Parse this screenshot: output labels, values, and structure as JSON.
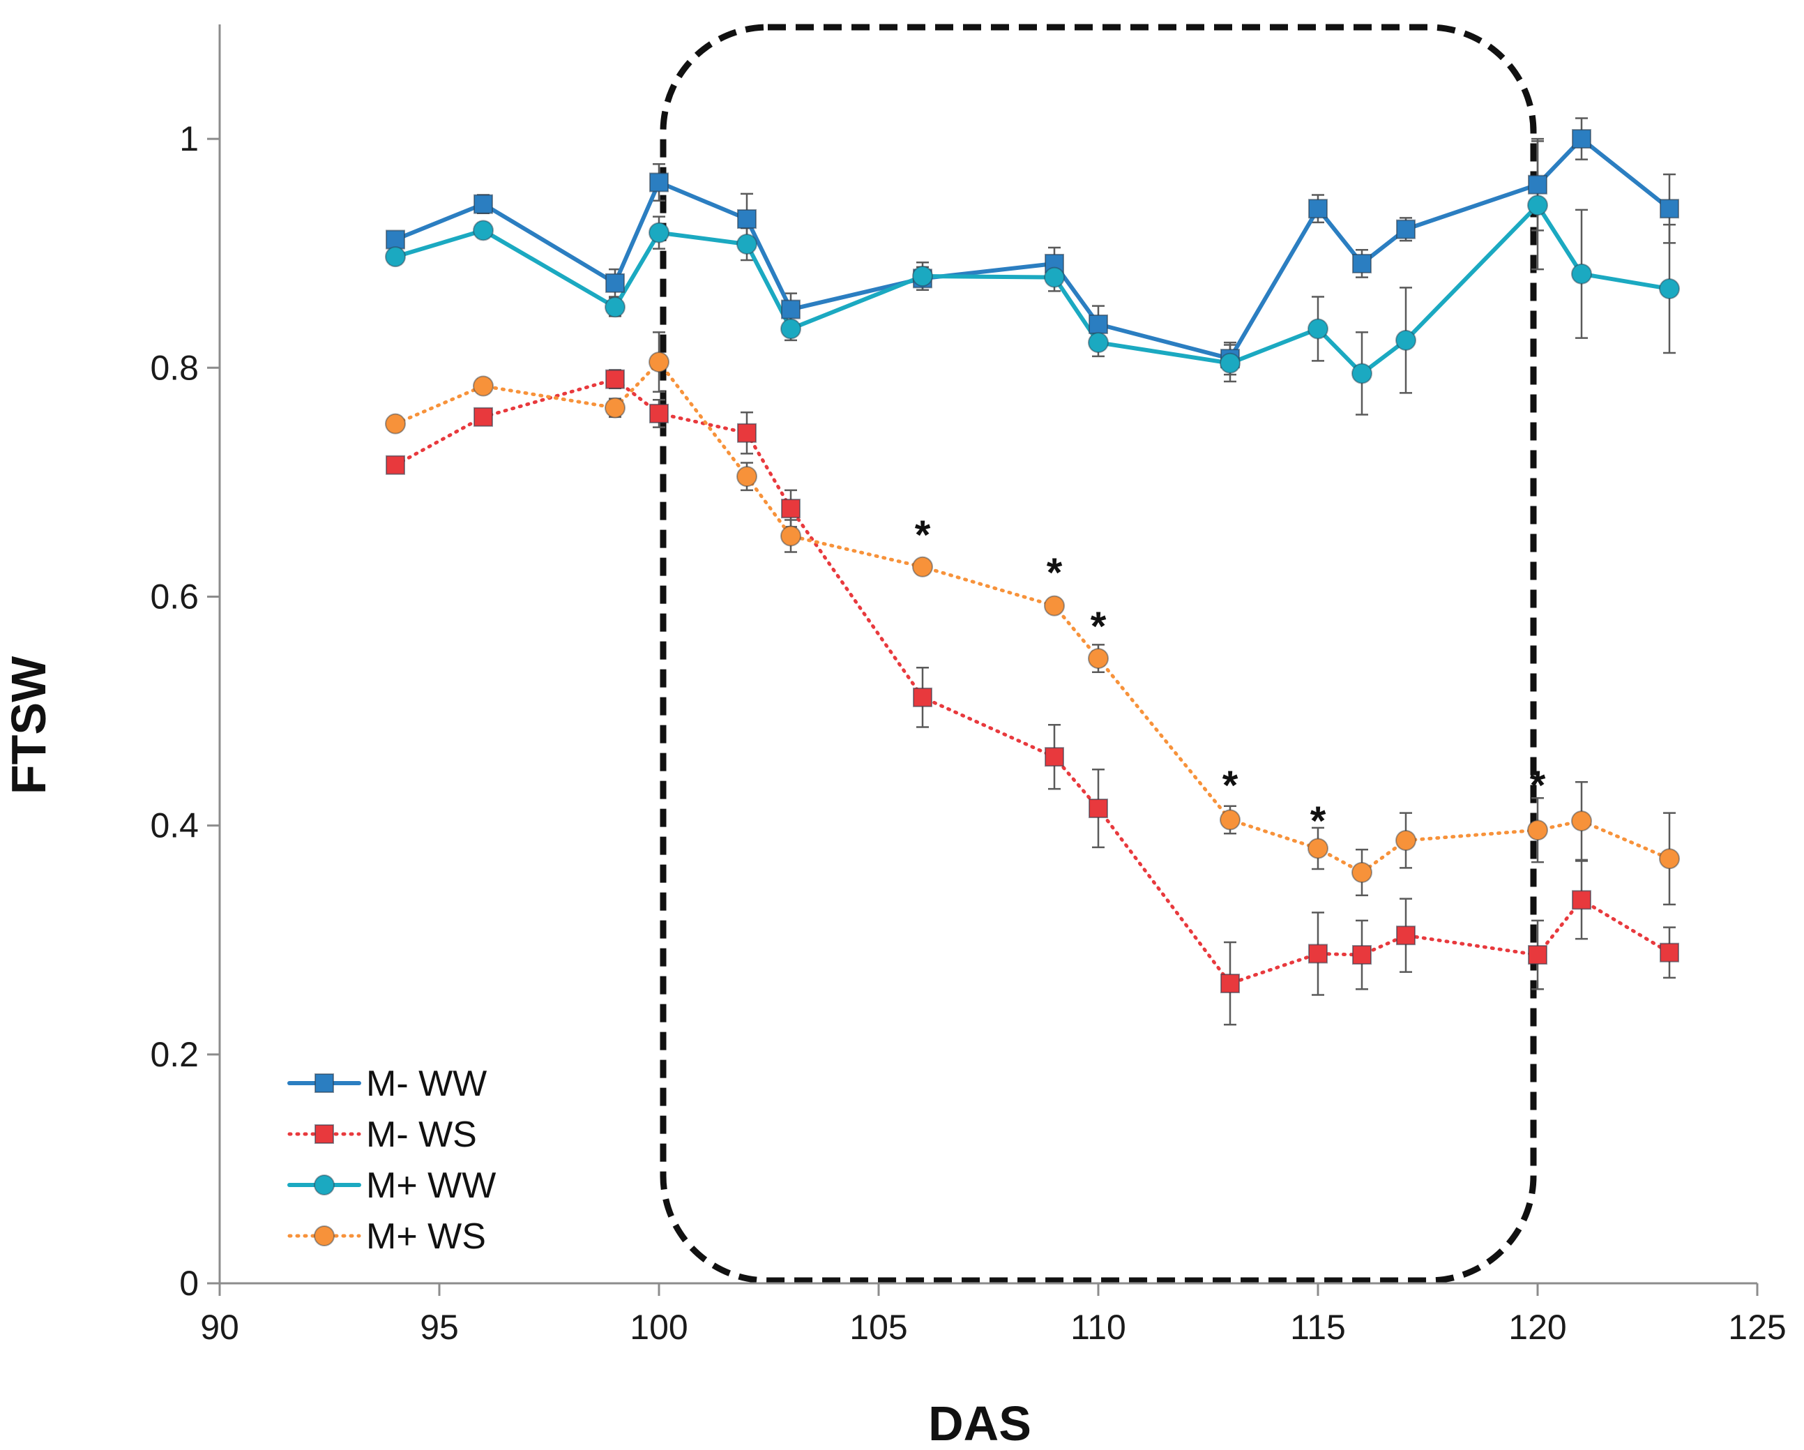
{
  "chart_data": {
    "type": "line",
    "title": "",
    "xlabel": "DAS",
    "ylabel": "FTSW",
    "xlim": [
      90,
      125
    ],
    "ylim": [
      0,
      1.1
    ],
    "xticks": [
      90,
      95,
      100,
      105,
      110,
      115,
      120,
      125
    ],
    "yticks": [
      0,
      0.2,
      0.4,
      0.6,
      0.8,
      1
    ],
    "xtick_labels": [
      "90",
      "95",
      "100",
      "105",
      "110",
      "115",
      "120",
      "125"
    ],
    "ytick_labels": [
      "0",
      "0.2",
      "0.4",
      "0.6",
      "0.8",
      "1"
    ],
    "grid": false,
    "legend_position": "bottom-left",
    "highlight_region": {
      "x": [
        100,
        120
      ],
      "y": [
        0,
        1.1
      ],
      "style": "dashed rounded rectangle"
    },
    "series": [
      {
        "name": "M- WW",
        "color": "#2b7ec1",
        "marker": "square",
        "line": "solid",
        "x": [
          94,
          96,
          99,
          100,
          102,
          103,
          106,
          109,
          110,
          113,
          115,
          116,
          117,
          120,
          121,
          123
        ],
        "y": [
          0.912,
          0.943,
          0.874,
          0.962,
          0.93,
          0.851,
          0.878,
          0.891,
          0.838,
          0.808,
          0.939,
          0.891,
          0.921,
          0.96,
          1.0,
          0.939
        ],
        "err": [
          0.006,
          0.008,
          0.012,
          0.016,
          0.022,
          0.014,
          0.01,
          0.014,
          0.016,
          0.014,
          0.012,
          0.012,
          0.01,
          0.04,
          0.018,
          0.03
        ]
      },
      {
        "name": "M- WS",
        "color": "#e8393d",
        "marker": "square",
        "line": "dotted",
        "x": [
          94,
          96,
          99,
          100,
          102,
          103,
          106,
          109,
          110,
          113,
          115,
          116,
          117,
          120,
          121,
          123
        ],
        "y": [
          0.715,
          0.757,
          0.79,
          0.76,
          0.743,
          0.677,
          0.512,
          0.46,
          0.415,
          0.262,
          0.288,
          0.287,
          0.304,
          0.287,
          0.335,
          0.289
        ],
        "err": [
          0.006,
          0.006,
          0.008,
          0.012,
          0.018,
          0.016,
          0.026,
          0.028,
          0.034,
          0.036,
          0.036,
          0.03,
          0.032,
          0.03,
          0.034,
          0.022
        ]
      },
      {
        "name": "M+ WW",
        "color": "#1ba9c1",
        "marker": "circle",
        "line": "solid",
        "x": [
          94,
          96,
          99,
          100,
          102,
          103,
          106,
          109,
          110,
          113,
          115,
          116,
          117,
          120,
          121,
          123
        ],
        "y": [
          0.897,
          0.92,
          0.853,
          0.918,
          0.908,
          0.834,
          0.88,
          0.879,
          0.822,
          0.804,
          0.834,
          0.795,
          0.824,
          0.942,
          0.882,
          0.869
        ],
        "err": [
          0.006,
          0.006,
          0.008,
          0.014,
          0.014,
          0.01,
          0.012,
          0.012,
          0.012,
          0.016,
          0.028,
          0.036,
          0.046,
          0.056,
          0.056,
          0.056
        ]
      },
      {
        "name": "M+ WS",
        "color": "#f7923a",
        "marker": "circle",
        "line": "dotted",
        "x": [
          94,
          96,
          99,
          100,
          102,
          103,
          106,
          109,
          110,
          113,
          115,
          116,
          117,
          120,
          121,
          123
        ],
        "y": [
          0.751,
          0.784,
          0.765,
          0.805,
          0.705,
          0.653,
          0.626,
          0.592,
          0.546,
          0.405,
          0.38,
          0.359,
          0.387,
          0.396,
          0.404,
          0.371
        ],
        "err": [
          0.006,
          0.006,
          0.008,
          0.026,
          0.012,
          0.014,
          0.006,
          0.006,
          0.012,
          0.012,
          0.018,
          0.02,
          0.024,
          0.028,
          0.034,
          0.04
        ]
      }
    ],
    "annotations": [
      {
        "text": "*",
        "x": 106,
        "y": 0.665
      },
      {
        "text": "*",
        "x": 109,
        "y": 0.632
      },
      {
        "text": "*",
        "x": 110,
        "y": 0.585
      },
      {
        "text": "*",
        "x": 113,
        "y": 0.446
      },
      {
        "text": "*",
        "x": 115,
        "y": 0.415
      },
      {
        "text": "*",
        "x": 120,
        "y": 0.446
      }
    ]
  }
}
